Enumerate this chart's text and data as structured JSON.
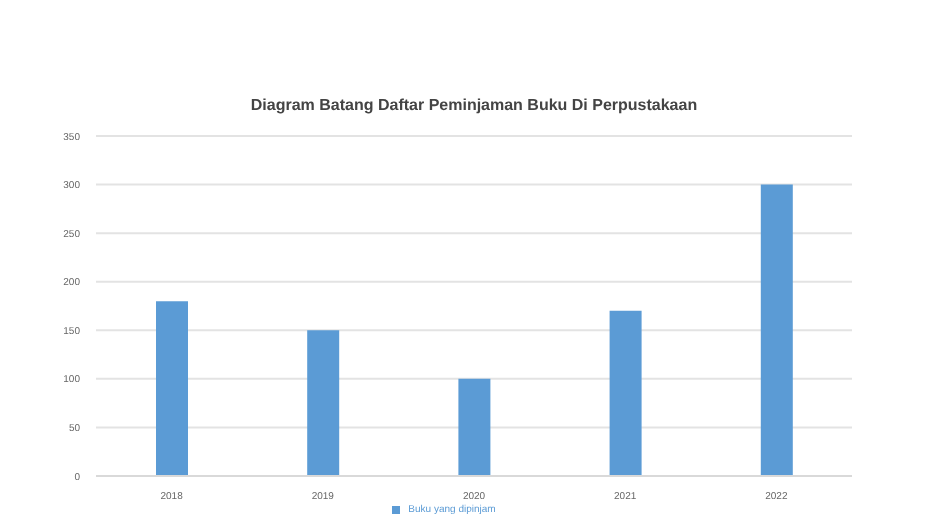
{
  "chart_data": {
    "type": "bar",
    "title": "Diagram Batang Daftar Peminjaman Buku Di Perpustakaan",
    "categories": [
      "2018",
      "2019",
      "2020",
      "2021",
      "2022"
    ],
    "series": [
      {
        "name": "Buku yang dipinjam",
        "color": "#5b9bd5",
        "values": [
          180,
          150,
          100,
          170,
          300
        ]
      }
    ],
    "ylim": [
      0,
      350
    ],
    "yticks": [
      0,
      50,
      100,
      150,
      200,
      250,
      300,
      350
    ],
    "grid": "y",
    "legend": "bottom"
  }
}
